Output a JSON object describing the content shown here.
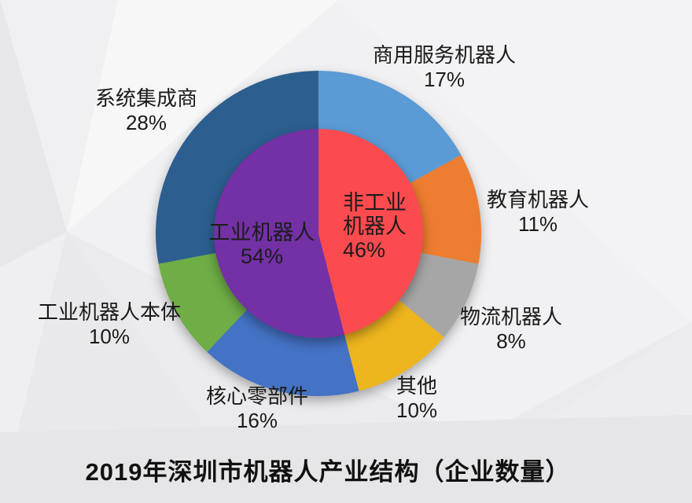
{
  "title": "2019年深圳市机器人产业结构（企业数量）",
  "chart_data": {
    "type": "pie",
    "subtype": "nested-donut",
    "title": "2019年深圳市机器人产业结构（企业数量）",
    "start_angle_deg": 0,
    "direction": "clockwise",
    "legend": "none",
    "units": "percent of enterprises",
    "inner_ring": {
      "name": "robot-category-split",
      "segments": [
        {
          "label": "非工业机器人",
          "value": 46,
          "pct": "46%",
          "color": "#FB4B4F"
        },
        {
          "label": "工业机器人",
          "value": 54,
          "pct": "54%",
          "color": "#7331A5"
        }
      ]
    },
    "outer_ring": {
      "name": "industry-segment-split",
      "segments": [
        {
          "label": "商用服务机器人",
          "value": 17,
          "pct": "17%",
          "color": "#5B9BD5"
        },
        {
          "label": "教育机器人",
          "value": 11,
          "pct": "11%",
          "color": "#ED7D31"
        },
        {
          "label": "物流机器人",
          "value": 8,
          "pct": "8%",
          "color": "#A6A6A6"
        },
        {
          "label": "其他",
          "value": 10,
          "pct": "10%",
          "color": "#EDB51E"
        },
        {
          "label": "核心零部件",
          "value": 16,
          "pct": "16%",
          "color": "#4472C4"
        },
        {
          "label": "工业机器人本体",
          "value": 10,
          "pct": "10%",
          "color": "#6FAD46"
        },
        {
          "label": "系统集成商",
          "value": 28,
          "pct": "28%",
          "color": "#2C5F8F"
        }
      ]
    }
  },
  "background": {
    "base_color": "#ebebed",
    "facet_colors": [
      "#f7f7f8",
      "#f0f0f2",
      "#e7e7e9",
      "#e6e6e8"
    ]
  }
}
